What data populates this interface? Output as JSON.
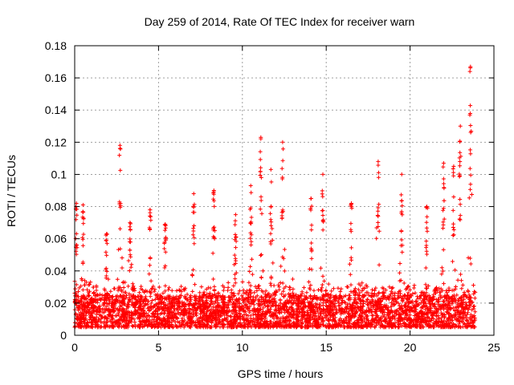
{
  "chart_data": {
    "type": "scatter",
    "title": "Day 259 of 2014, Rate Of TEC Index for receiver warn",
    "xlabel": "GPS time / hours",
    "ylabel": "ROTI / TECUs",
    "xlim": [
      0,
      25
    ],
    "ylim": [
      0,
      0.18
    ],
    "xticks": [
      "0",
      "5",
      "10",
      "15",
      "20",
      "25"
    ],
    "yticks": [
      "0",
      "0.02",
      "0.04",
      "0.06",
      "0.08",
      "0.1",
      "0.12",
      "0.14",
      "0.16",
      "0.18"
    ],
    "grid": true,
    "marker": "+",
    "color": "#ff0000",
    "data_span_hours": [
      0,
      23.9
    ],
    "baseline_band": [
      0.005,
      0.025
    ],
    "peaks": [
      {
        "x": 0.1,
        "y": 0.082
      },
      {
        "x": 0.5,
        "y": 0.081
      },
      {
        "x": 1.9,
        "y": 0.063
      },
      {
        "x": 2.7,
        "y": 0.118
      },
      {
        "x": 3.3,
        "y": 0.07
      },
      {
        "x": 4.5,
        "y": 0.078
      },
      {
        "x": 5.4,
        "y": 0.069
      },
      {
        "x": 7.1,
        "y": 0.088
      },
      {
        "x": 8.3,
        "y": 0.09
      },
      {
        "x": 9.6,
        "y": 0.075
      },
      {
        "x": 10.5,
        "y": 0.093
      },
      {
        "x": 11.1,
        "y": 0.123
      },
      {
        "x": 11.7,
        "y": 0.103
      },
      {
        "x": 12.4,
        "y": 0.12
      },
      {
        "x": 14.1,
        "y": 0.085
      },
      {
        "x": 14.8,
        "y": 0.1
      },
      {
        "x": 16.5,
        "y": 0.082
      },
      {
        "x": 18.1,
        "y": 0.108
      },
      {
        "x": 19.5,
        "y": 0.1
      },
      {
        "x": 21.0,
        "y": 0.08
      },
      {
        "x": 22.0,
        "y": 0.107
      },
      {
        "x": 22.6,
        "y": 0.105
      },
      {
        "x": 23.0,
        "y": 0.13
      },
      {
        "x": 23.6,
        "y": 0.167
      }
    ]
  }
}
